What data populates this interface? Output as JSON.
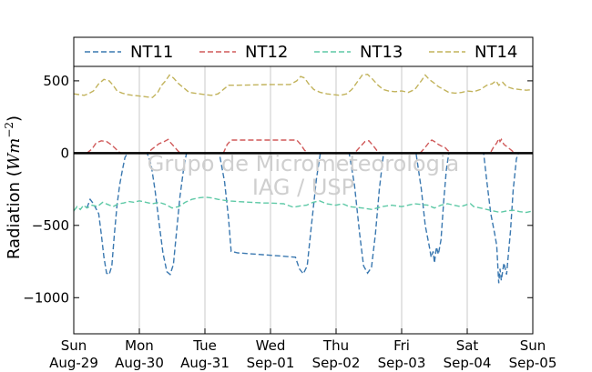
{
  "chart_data": {
    "type": "line",
    "title": "",
    "ylabel": "Radiation (",
    "ylabel_unit": "Wm",
    "ylabel_exp": "−2",
    "ylabel_close": ")",
    "ylim": [
      -1250,
      600
    ],
    "yticks": [
      500,
      0,
      -500,
      -1000
    ],
    "ytick_labels": [
      "500",
      "0",
      "−500",
      "−1000"
    ],
    "x_range_days": [
      0,
      7
    ],
    "xticks": [
      {
        "day": 0,
        "top": "Sun",
        "bottom": "Aug-29"
      },
      {
        "day": 1,
        "top": "Mon",
        "bottom": "Aug-30"
      },
      {
        "day": 2,
        "top": "Tue",
        "bottom": "Aug-31"
      },
      {
        "day": 3,
        "top": "Wed",
        "bottom": "Sep-01"
      },
      {
        "day": 4,
        "top": "Thu",
        "bottom": "Sep-02"
      },
      {
        "day": 5,
        "top": "Fri",
        "bottom": "Sep-03"
      },
      {
        "day": 6,
        "top": "Sat",
        "bottom": "Sep-04"
      },
      {
        "day": 7,
        "top": "Sun",
        "bottom": "Sep-05"
      }
    ],
    "grid": "vertical",
    "legend": "top",
    "zero_line": 0,
    "watermark": [
      "Grupo de Micrometeorologia",
      "IAG / USP"
    ],
    "series": [
      {
        "name": "NT11",
        "color": "#3a78b0",
        "points": [
          [
            0.2,
            -380
          ],
          [
            0.25,
            -320
          ],
          [
            0.3,
            -350
          ],
          [
            0.38,
            -420
          ],
          [
            0.42,
            -560
          ],
          [
            0.46,
            -720
          ],
          [
            0.5,
            -830
          ],
          [
            0.54,
            -840
          ],
          [
            0.58,
            -780
          ],
          [
            0.62,
            -560
          ],
          [
            0.66,
            -360
          ],
          [
            0.7,
            -220
          ],
          [
            0.74,
            -120
          ],
          [
            0.78,
            -30
          ],
          [
            0.82,
            0
          ],
          [
            1.12,
            0
          ],
          [
            1.18,
            -80
          ],
          [
            1.24,
            -260
          ],
          [
            1.3,
            -480
          ],
          [
            1.36,
            -690
          ],
          [
            1.42,
            -820
          ],
          [
            1.47,
            -840
          ],
          [
            1.52,
            -770
          ],
          [
            1.56,
            -580
          ],
          [
            1.62,
            -300
          ],
          [
            1.68,
            -90
          ],
          [
            1.72,
            0
          ],
          [
            2.22,
            0
          ],
          [
            2.3,
            -200
          ],
          [
            2.36,
            -450
          ],
          [
            2.4,
            -680
          ],
          [
            2.5,
            -690
          ],
          [
            2.8,
            -700
          ],
          [
            3.1,
            -710
          ],
          [
            3.38,
            -720
          ],
          [
            3.44,
            -800
          ],
          [
            3.5,
            -835
          ],
          [
            3.56,
            -780
          ],
          [
            3.62,
            -520
          ],
          [
            3.7,
            -180
          ],
          [
            3.76,
            0
          ],
          [
            4.2,
            0
          ],
          [
            4.28,
            -220
          ],
          [
            4.36,
            -560
          ],
          [
            4.42,
            -780
          ],
          [
            4.48,
            -830
          ],
          [
            4.54,
            -790
          ],
          [
            4.6,
            -560
          ],
          [
            4.66,
            -250
          ],
          [
            4.72,
            -20
          ],
          [
            4.75,
            0
          ],
          [
            5.22,
            0
          ],
          [
            5.3,
            -250
          ],
          [
            5.36,
            -500
          ],
          [
            5.42,
            -640
          ],
          [
            5.45,
            -720
          ],
          [
            5.48,
            -680
          ],
          [
            5.5,
            -760
          ],
          [
            5.53,
            -650
          ],
          [
            5.56,
            -700
          ],
          [
            5.6,
            -600
          ],
          [
            5.64,
            -340
          ],
          [
            5.68,
            -120
          ],
          [
            5.72,
            0
          ],
          [
            6.25,
            0
          ],
          [
            6.3,
            -200
          ],
          [
            6.36,
            -420
          ],
          [
            6.42,
            -560
          ],
          [
            6.45,
            -640
          ],
          [
            6.48,
            -900
          ],
          [
            6.5,
            -800
          ],
          [
            6.52,
            -880
          ],
          [
            6.56,
            -760
          ],
          [
            6.6,
            -840
          ],
          [
            6.66,
            -540
          ],
          [
            6.7,
            -260
          ],
          [
            6.75,
            -40
          ],
          [
            6.78,
            0
          ]
        ]
      },
      {
        "name": "NT12",
        "color": "#d05a5a",
        "points": [
          [
            0.2,
            0
          ],
          [
            0.28,
            30
          ],
          [
            0.34,
            70
          ],
          [
            0.42,
            85
          ],
          [
            0.5,
            80
          ],
          [
            0.58,
            55
          ],
          [
            0.64,
            30
          ],
          [
            0.68,
            10
          ],
          [
            0.72,
            0
          ],
          [
            1.12,
            0
          ],
          [
            1.2,
            30
          ],
          [
            1.3,
            65
          ],
          [
            1.38,
            80
          ],
          [
            1.44,
            95
          ],
          [
            1.48,
            70
          ],
          [
            1.54,
            40
          ],
          [
            1.6,
            10
          ],
          [
            1.65,
            0
          ],
          [
            2.28,
            0
          ],
          [
            2.34,
            60
          ],
          [
            2.4,
            90
          ],
          [
            3.0,
            90
          ],
          [
            3.4,
            90
          ],
          [
            3.46,
            60
          ],
          [
            3.52,
            20
          ],
          [
            3.58,
            0
          ],
          [
            4.28,
            0
          ],
          [
            4.36,
            40
          ],
          [
            4.44,
            80
          ],
          [
            4.5,
            85
          ],
          [
            4.56,
            55
          ],
          [
            4.62,
            20
          ],
          [
            4.68,
            0
          ],
          [
            5.28,
            0
          ],
          [
            5.36,
            40
          ],
          [
            5.42,
            75
          ],
          [
            5.46,
            90
          ],
          [
            5.5,
            80
          ],
          [
            5.56,
            60
          ],
          [
            5.6,
            50
          ],
          [
            5.66,
            40
          ],
          [
            5.7,
            20
          ],
          [
            5.76,
            0
          ],
          [
            6.35,
            0
          ],
          [
            6.4,
            40
          ],
          [
            6.45,
            70
          ],
          [
            6.48,
            100
          ],
          [
            6.5,
            80
          ],
          [
            6.52,
            95
          ],
          [
            6.56,
            60
          ],
          [
            6.62,
            40
          ],
          [
            6.7,
            10
          ],
          [
            6.75,
            0
          ]
        ]
      },
      {
        "name": "NT13",
        "color": "#5ec9a6",
        "points": [
          [
            0,
            -400
          ],
          [
            0.05,
            -370
          ],
          [
            0.1,
            -390
          ],
          [
            0.15,
            -360
          ],
          [
            0.2,
            -380
          ],
          [
            0.28,
            -360
          ],
          [
            0.36,
            -370
          ],
          [
            0.44,
            -340
          ],
          [
            0.52,
            -355
          ],
          [
            0.6,
            -370
          ],
          [
            0.68,
            -350
          ],
          [
            0.76,
            -345
          ],
          [
            0.84,
            -335
          ],
          [
            0.92,
            -340
          ],
          [
            1.0,
            -330
          ],
          [
            1.1,
            -340
          ],
          [
            1.2,
            -350
          ],
          [
            1.3,
            -340
          ],
          [
            1.4,
            -355
          ],
          [
            1.5,
            -380
          ],
          [
            1.6,
            -370
          ],
          [
            1.7,
            -340
          ],
          [
            1.8,
            -320
          ],
          [
            1.9,
            -310
          ],
          [
            2.0,
            -305
          ],
          [
            2.1,
            -310
          ],
          [
            2.2,
            -320
          ],
          [
            2.35,
            -330
          ],
          [
            2.5,
            -335
          ],
          [
            2.7,
            -340
          ],
          [
            2.9,
            -345
          ],
          [
            3.0,
            -345
          ],
          [
            3.2,
            -350
          ],
          [
            3.35,
            -375
          ],
          [
            3.45,
            -365
          ],
          [
            3.55,
            -360
          ],
          [
            3.65,
            -340
          ],
          [
            3.75,
            -330
          ],
          [
            3.85,
            -350
          ],
          [
            4.0,
            -360
          ],
          [
            4.1,
            -350
          ],
          [
            4.2,
            -370
          ],
          [
            4.3,
            -375
          ],
          [
            4.4,
            -380
          ],
          [
            4.55,
            -390
          ],
          [
            4.7,
            -370
          ],
          [
            4.85,
            -360
          ],
          [
            5.0,
            -370
          ],
          [
            5.1,
            -360
          ],
          [
            5.2,
            -350
          ],
          [
            5.3,
            -355
          ],
          [
            5.4,
            -360
          ],
          [
            5.5,
            -380
          ],
          [
            5.6,
            -360
          ],
          [
            5.7,
            -350
          ],
          [
            5.8,
            -360
          ],
          [
            5.9,
            -370
          ],
          [
            6.0,
            -355
          ],
          [
            6.05,
            -350
          ],
          [
            6.1,
            -370
          ],
          [
            6.2,
            -380
          ],
          [
            6.3,
            -390
          ],
          [
            6.4,
            -400
          ],
          [
            6.5,
            -410
          ],
          [
            6.6,
            -400
          ],
          [
            6.7,
            -395
          ],
          [
            6.8,
            -405
          ],
          [
            6.9,
            -410
          ],
          [
            7.0,
            -400
          ]
        ]
      },
      {
        "name": "NT14",
        "color": "#c2b35c",
        "points": [
          [
            0,
            410
          ],
          [
            0.08,
            405
          ],
          [
            0.16,
            400
          ],
          [
            0.22,
            410
          ],
          [
            0.3,
            430
          ],
          [
            0.38,
            480
          ],
          [
            0.46,
            510
          ],
          [
            0.54,
            500
          ],
          [
            0.6,
            470
          ],
          [
            0.66,
            430
          ],
          [
            0.74,
            415
          ],
          [
            0.82,
            405
          ],
          [
            0.9,
            400
          ],
          [
            1.0,
            395
          ],
          [
            1.1,
            390
          ],
          [
            1.2,
            385
          ],
          [
            1.28,
            420
          ],
          [
            1.34,
            470
          ],
          [
            1.4,
            500
          ],
          [
            1.46,
            540
          ],
          [
            1.52,
            520
          ],
          [
            1.6,
            480
          ],
          [
            1.68,
            450
          ],
          [
            1.76,
            420
          ],
          [
            1.84,
            415
          ],
          [
            1.92,
            410
          ],
          [
            2.0,
            405
          ],
          [
            2.1,
            400
          ],
          [
            2.2,
            410
          ],
          [
            2.28,
            440
          ],
          [
            2.36,
            470
          ],
          [
            2.5,
            470
          ],
          [
            3.0,
            475
          ],
          [
            3.3,
            475
          ],
          [
            3.4,
            500
          ],
          [
            3.46,
            530
          ],
          [
            3.52,
            520
          ],
          [
            3.58,
            480
          ],
          [
            3.66,
            440
          ],
          [
            3.76,
            420
          ],
          [
            3.86,
            410
          ],
          [
            3.96,
            405
          ],
          [
            4.06,
            400
          ],
          [
            4.16,
            410
          ],
          [
            4.24,
            440
          ],
          [
            4.32,
            490
          ],
          [
            4.4,
            540
          ],
          [
            4.48,
            545
          ],
          [
            4.56,
            510
          ],
          [
            4.64,
            470
          ],
          [
            4.72,
            440
          ],
          [
            4.8,
            430
          ],
          [
            4.9,
            425
          ],
          [
            5.0,
            430
          ],
          [
            5.1,
            420
          ],
          [
            5.2,
            440
          ],
          [
            5.3,
            500
          ],
          [
            5.36,
            540
          ],
          [
            5.42,
            510
          ],
          [
            5.48,
            490
          ],
          [
            5.56,
            460
          ],
          [
            5.64,
            440
          ],
          [
            5.72,
            420
          ],
          [
            5.82,
            415
          ],
          [
            5.92,
            420
          ],
          [
            6.0,
            430
          ],
          [
            6.1,
            425
          ],
          [
            6.2,
            440
          ],
          [
            6.3,
            470
          ],
          [
            6.38,
            480
          ],
          [
            6.44,
            500
          ],
          [
            6.48,
            470
          ],
          [
            6.54,
            490
          ],
          [
            6.6,
            460
          ],
          [
            6.7,
            445
          ],
          [
            6.8,
            440
          ],
          [
            6.9,
            435
          ],
          [
            7.0,
            440
          ]
        ]
      }
    ]
  }
}
